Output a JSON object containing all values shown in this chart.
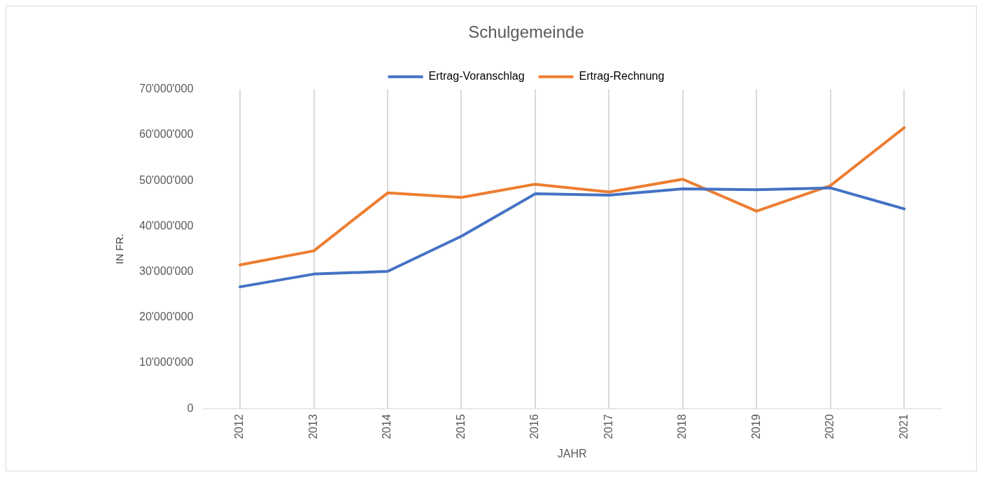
{
  "chart_data": {
    "type": "line",
    "title": "Schulgemeinde",
    "xlabel": "JAHR",
    "ylabel": "IN FR.",
    "categories": [
      "2012",
      "2013",
      "2014",
      "2015",
      "2016",
      "2017",
      "2018",
      "2019",
      "2020",
      "2021"
    ],
    "series": [
      {
        "name": "Ertrag-Voranschlag",
        "color": "#4472c4",
        "values": [
          26700000,
          29500000,
          30100000,
          37800000,
          47100000,
          46800000,
          48200000,
          48000000,
          48400000,
          43800000
        ]
      },
      {
        "name": "Ertrag-Rechnung",
        "color": "#ed7d31",
        "values": [
          31500000,
          34600000,
          47300000,
          46300000,
          49200000,
          47500000,
          50300000,
          43300000,
          48900000,
          61600000
        ]
      }
    ],
    "ylim": [
      0,
      70000000
    ],
    "yticks": [
      0,
      {
        "value": 10000000,
        "label": "10'000'000"
      },
      {
        "value": 20000000,
        "label": "20'000'000"
      },
      {
        "value": 30000000,
        "label": "30'000'000"
      },
      {
        "value": 40000000,
        "label": "40'000'000"
      },
      {
        "value": 50000000,
        "label": "50'000'000"
      },
      {
        "value": 60000000,
        "label": "60'000'000"
      },
      {
        "value": 70000000,
        "label": "70'000'000"
      }
    ],
    "grid": "x",
    "legend": "top",
    "marker": "none",
    "line_style": "solid"
  }
}
